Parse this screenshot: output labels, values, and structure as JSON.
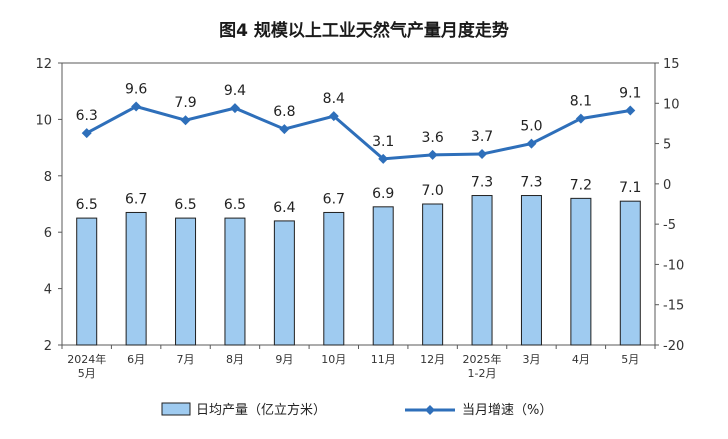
{
  "chart_data": {
    "type": "bar",
    "title": "图4  规模以上工业天然气产量月度走势",
    "categories": [
      [
        "2024年",
        "5月"
      ],
      [
        "6月"
      ],
      [
        "7月"
      ],
      [
        "8月"
      ],
      [
        "9月"
      ],
      [
        "10月"
      ],
      [
        "11月"
      ],
      [
        "12月"
      ],
      [
        "2025年",
        "1-2月"
      ],
      [
        "3月"
      ],
      [
        "4月"
      ],
      [
        "5月"
      ]
    ],
    "ylim_left": [
      2,
      12
    ],
    "yticks_left": [
      2,
      4,
      6,
      8,
      10,
      12
    ],
    "ylim_right": [
      -20,
      15
    ],
    "yticks_right": [
      -20,
      -15,
      -10,
      -5,
      0,
      5,
      10,
      15
    ],
    "series": [
      {
        "name": "日均产量（亿立方米）",
        "type": "bar",
        "axis": "left",
        "color": "#9fcbf0",
        "values": [
          6.5,
          6.7,
          6.5,
          6.5,
          6.4,
          6.7,
          6.9,
          7.0,
          7.3,
          7.3,
          7.2,
          7.1
        ],
        "labels": [
          "6.5",
          "6.7",
          "6.5",
          "6.5",
          "6.4",
          "6.7",
          "6.9",
          "7.0",
          "7.3",
          "7.3",
          "7.2",
          "7.1"
        ]
      },
      {
        "name": "当月增速（%）",
        "type": "line",
        "axis": "right",
        "color": "#2e6fba",
        "values": [
          6.3,
          9.6,
          7.9,
          9.4,
          6.8,
          8.4,
          3.1,
          3.6,
          3.7,
          5.0,
          8.1,
          9.1
        ],
        "labels": [
          "6.3",
          "9.6",
          "7.9",
          "9.4",
          "6.8",
          "8.4",
          "3.1",
          "3.6",
          "3.7",
          "5.0",
          "8.1",
          "9.1"
        ]
      }
    ],
    "legend_position": "bottom",
    "grid": false
  }
}
